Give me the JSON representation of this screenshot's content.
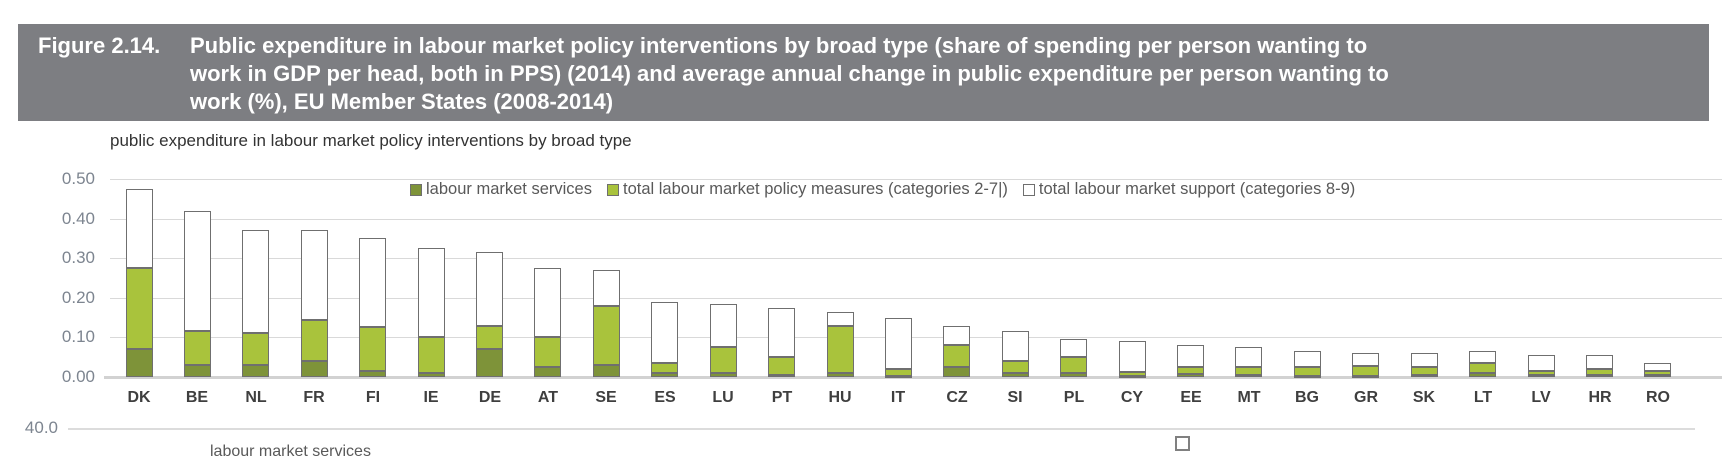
{
  "figure": {
    "label": "Figure 2.14.",
    "title_lines": [
      "Public expenditure in labour market policy interventions by broad type (share of spending per person wanting to",
      "work in GDP per head, both in PPS) (2014) and average annual change in public expenditure per person wanting to",
      "work (%), EU Member States (2008-2014)"
    ]
  },
  "chart_data": {
    "type": "bar",
    "stacked": true,
    "title": "public expenditure in labour market policy interventions by broad type",
    "categories": [
      "DK",
      "BE",
      "NL",
      "FR",
      "FI",
      "IE",
      "DE",
      "AT",
      "SE",
      "ES",
      "LU",
      "PT",
      "HU",
      "IT",
      "CZ",
      "SI",
      "PL",
      "CY",
      "EE",
      "MT",
      "BG",
      "GR",
      "SK",
      "LT",
      "LV",
      "HR",
      "RO"
    ],
    "series": [
      {
        "name": "labour market services",
        "color": "#7e9339",
        "values": [
          0.07,
          0.03,
          0.03,
          0.04,
          0.015,
          0.01,
          0.07,
          0.025,
          0.03,
          0.01,
          0.01,
          0.005,
          0.01,
          0.003,
          0.025,
          0.01,
          0.01,
          0.003,
          0.008,
          0.005,
          0.003,
          0.003,
          0.005,
          0.01,
          0.004,
          0.004,
          0.005
        ]
      },
      {
        "name": "total labour market policy measures (categories 2-7)",
        "color": "#a9c33c",
        "values": [
          0.205,
          0.085,
          0.08,
          0.105,
          0.11,
          0.09,
          0.06,
          0.075,
          0.15,
          0.025,
          0.065,
          0.045,
          0.12,
          0.017,
          0.055,
          0.03,
          0.04,
          0.009,
          0.017,
          0.02,
          0.022,
          0.024,
          0.021,
          0.026,
          0.011,
          0.016,
          0.009
        ]
      },
      {
        "name": "total labour market support (categories 8-9)",
        "color": "#ffffff",
        "values": [
          0.2,
          0.305,
          0.26,
          0.225,
          0.225,
          0.225,
          0.185,
          0.175,
          0.09,
          0.155,
          0.11,
          0.125,
          0.035,
          0.13,
          0.05,
          0.075,
          0.045,
          0.078,
          0.055,
          0.05,
          0.04,
          0.033,
          0.034,
          0.029,
          0.04,
          0.035,
          0.021
        ]
      }
    ],
    "ylim": [
      0,
      0.5
    ],
    "ytick_step": 0.1,
    "ytick_labels": [
      "0.00",
      "0.10",
      "0.20",
      "0.30",
      "0.40",
      "0.50"
    ],
    "grid": true,
    "legend_position": "top-inside"
  },
  "legend": {
    "items": [
      {
        "label": "labour market services",
        "color": "#7e9339"
      },
      {
        "label": "total labour market policy measures (categories 2-7|)",
        "color": "#a9c33c"
      },
      {
        "label": "total labour market support (categories 8-9)",
        "color": "#ffffff"
      }
    ]
  },
  "chart2_fragment": {
    "ytick_label": "40.0",
    "clipped_text": "labour market services"
  }
}
